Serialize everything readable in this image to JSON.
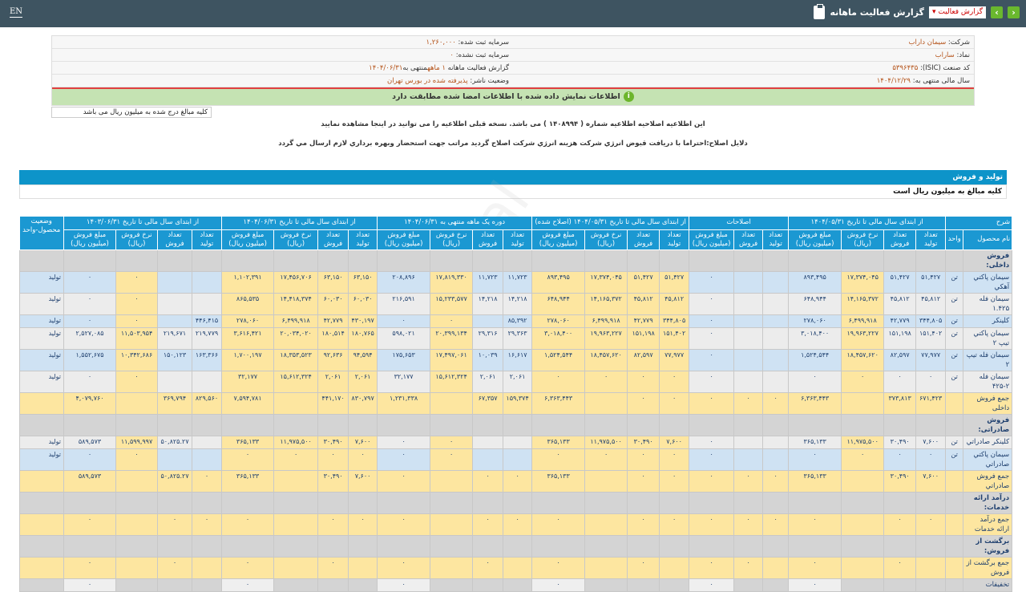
{
  "topbar": {
    "lang": "EN",
    "title": "گزارش فعالیت ماهانه",
    "select_value": "گزارش فعالیت",
    "prev_icon": "chevron-left",
    "next_icon": "chevron-right"
  },
  "info": {
    "company_label": "شرکت:",
    "company": "سیمان داراب",
    "capital_label": "سرمایه ثبت شده:",
    "capital": "۱,۲۶۰,۰۰۰",
    "symbol_label": "نماد:",
    "symbol": "ساراب",
    "unreg_capital_label": "سرمایه ثبت نشده:",
    "unreg_capital": "۰",
    "isic_label": "کد صنعت (ISIC):",
    "isic": "۵۳۹۶۴۳۵",
    "report_label": "گزارش فعالیت ماهانه",
    "report_period": "۱ ماهه",
    "report_end_label": "منتهی به",
    "report_end": "۱۴۰۴/۰۶/۳۱",
    "fiscal_label": "سال مالی منتهی به:",
    "fiscal": "۱۴۰۴/۱۲/۲۹",
    "status_label": "وضعیت ناشر:",
    "status": "پذیرفته شده در بورس تهران",
    "verified": "اطلاعات نمایش داده شده با اطلاعات امضا شده مطابقت دارد"
  },
  "unit_note": "کلیه مبالغ درج شده به میلیون ریال می باشد",
  "notes": {
    "correction_prefix": "این اطلاعیه اصلاحیه اطلاعیه شماره ( ۱۴۰۸۹۹۴ ) می باشد. نسخه قبلی اطلاعیه را می توانید در",
    "correction_link": "اینجا",
    "correction_suffix": "مشاهده نمایید",
    "reason": "دلایل اصلاح:احتراما با دریافت قبوض انرژي شرکت هزینه انرژي شرکت اصلاح گردید مراتب جهت استحضار وبهره برداري لازم ارسال مي گردد"
  },
  "section": {
    "title": "تولید و فروش",
    "note": "کلیه مبالغ به میلیون ریال است"
  },
  "colors": {
    "header": "#1b98d2",
    "topbar": "#3e5461",
    "highlight": "#fde6a0",
    "row_blue": "#cfe2f3",
    "row_gray": "#ececec"
  },
  "table": {
    "groups": [
      "شرح",
      "از ابتدای سال مالی تا تاریخ ۱۴۰۴/۰۵/۳۱",
      "اصلاحات",
      "از ابتدای سال مالی تا تاریخ ۱۴۰۴/۰۵/۳۱ (اصلاح شده)",
      "دوره یک ماهه منتهی به ۱۴۰۴/۰۶/۳۱",
      "از ابتدای سال مالی تا تاریخ ۱۴۰۴/۰۶/۳۱",
      "از ابتدای سال مالی تا تاریخ ۱۴۰۳/۰۶/۳۱",
      "وضعیت محصول-واحد"
    ],
    "sub": {
      "name": "نام محصول",
      "unit": "واحد",
      "prod": "تعداد تولید",
      "sales": "تعداد فروش",
      "rate": "نرخ فروش (ریال)",
      "amount": "مبلغ فروش (میلیون ریال)"
    },
    "rows": [
      {
        "type": "section",
        "name": "فروش داخلی:"
      },
      {
        "type": "blue",
        "name": "سیمان پاکتي آهکي",
        "unit": "تن",
        "status": "تولید",
        "cells": [
          "۵۱,۴۲۷",
          "۵۱,۴۲۷",
          "۱۷,۳۷۴,۰۴۵",
          "۸۹۳,۴۹۵",
          "",
          "",
          "۰",
          "۵۱,۴۲۷",
          "۵۱,۴۲۷",
          "۱۷,۳۷۴,۰۴۵",
          "۸۹۳,۴۹۵",
          "۱۱,۷۲۳",
          "۱۱,۷۲۳",
          "۱۷,۸۱۹,۳۳۰",
          "۲۰۸,۸۹۶",
          "۶۳,۱۵۰",
          "۶۳,۱۵۰",
          "۱۷,۴۵۶,۷۰۶",
          "۱,۱۰۲,۳۹۱",
          "",
          "",
          "۰",
          "۰"
        ]
      },
      {
        "type": "gray",
        "name": "سیمان فله ۱.۴۲۵",
        "unit": "تن",
        "status": "تولید",
        "cells": [
          "۴۵,۸۱۲",
          "۴۵,۸۱۲",
          "۱۴,۱۶۵,۳۷۲",
          "۶۴۸,۹۴۴",
          "",
          "",
          "۰",
          "۴۵,۸۱۲",
          "۴۵,۸۱۲",
          "۱۴,۱۶۵,۳۷۲",
          "۶۴۸,۹۴۴",
          "۱۴,۲۱۸",
          "۱۴,۲۱۸",
          "۱۵,۲۳۳,۵۷۷",
          "۲۱۶,۵۹۱",
          "۶۰,۰۳۰",
          "۶۰,۰۳۰",
          "۱۴,۴۱۸,۳۷۴",
          "۸۶۵,۵۳۵",
          "",
          "",
          "۰",
          "۰"
        ]
      },
      {
        "type": "blue",
        "name": "کلینکر",
        "unit": "تن",
        "status": "تولید",
        "cells": [
          "۳۴۴,۸۰۵",
          "۴۲,۷۷۹",
          "۶,۴۹۹,۹۱۸",
          "۲۷۸,۰۶۰",
          "",
          "",
          "۰",
          "۳۴۴,۸۰۵",
          "۴۲,۷۷۹",
          "۶,۴۹۹,۹۱۸",
          "۲۷۸,۰۶۰",
          "۸۵,۳۹۲",
          "",
          "۰",
          "۰",
          "۴۳۰,۱۹۷",
          "۴۲,۷۷۹",
          "۶,۴۹۹,۹۱۸",
          "۲۷۸,۰۶۰",
          "۴۴۶,۴۱۵",
          "",
          "۰",
          "۰"
        ]
      },
      {
        "type": "gray",
        "name": "سیمان پاکتي تیپ ۲",
        "unit": "تن",
        "status": "تولید",
        "cells": [
          "۱۵۱,۴۰۲",
          "۱۵۱,۱۹۸",
          "۱۹,۹۶۳,۲۲۷",
          "۳,۰۱۸,۴۰۰",
          "",
          "",
          "۰",
          "۱۵۱,۴۰۲",
          "۱۵۱,۱۹۸",
          "۱۹,۹۶۳,۲۲۷",
          "۳,۰۱۸,۴۰۰",
          "۲۹,۳۶۳",
          "۲۹,۳۱۶",
          "۲۰,۳۹۹,۱۳۴",
          "۵۹۸,۰۲۱",
          "۱۸۰,۷۶۵",
          "۱۸۰,۵۱۴",
          "۲۰,۰۳۴,۰۲۰",
          "۳,۶۱۶,۴۲۱",
          "۲۱۹,۷۷۹",
          "۲۱۹,۶۷۱",
          "۱۱,۵۰۳,۹۵۴",
          "۲,۵۲۷,۰۸۵"
        ]
      },
      {
        "type": "blue",
        "name": "سیمان فله تیپ ۲",
        "unit": "تن",
        "status": "تولید",
        "cells": [
          "۷۷,۹۷۷",
          "۸۲,۵۹۷",
          "۱۸,۴۵۷,۶۲۰",
          "۱,۵۲۴,۵۴۴",
          "",
          "",
          "۰",
          "۷۷,۹۷۷",
          "۸۲,۵۹۷",
          "۱۸,۴۵۷,۶۲۰",
          "۱,۵۲۴,۵۴۴",
          "۱۶,۶۱۷",
          "۱۰,۰۳۹",
          "۱۷,۴۹۷,۰۶۱",
          "۱۷۵,۶۵۳",
          "۹۴,۵۹۴",
          "۹۲,۶۳۶",
          "۱۸,۳۵۳,۵۲۳",
          "۱,۷۰۰,۱۹۷",
          "۱۶۳,۳۶۶",
          "۱۵۰,۱۲۳",
          "۱۰,۳۴۲,۶۸۶",
          "۱,۵۵۲,۶۷۵"
        ]
      },
      {
        "type": "gray",
        "name": "سیمان فله ۲-۴۲۵",
        "unit": "تن",
        "status": "تولید",
        "cells": [
          "۰",
          "۰",
          "۰",
          "۰",
          "",
          "",
          "۰",
          "۰",
          "۰",
          "۰",
          "۰",
          "۲,۰۶۱",
          "۲,۰۶۱",
          "۱۵,۶۱۲,۳۲۴",
          "۳۲,۱۷۷",
          "۲,۰۶۱",
          "۲,۰۶۱",
          "۱۵,۶۱۲,۳۲۴",
          "۳۲,۱۷۷",
          "",
          "",
          "۰",
          "۰"
        ]
      },
      {
        "type": "total",
        "name": "جمع فروش داخلی",
        "unit": "",
        "status": "",
        "cells": [
          "۶۷۱,۴۲۳",
          "۳۷۳,۸۱۳",
          "",
          "۶,۳۶۳,۴۴۳",
          "۰",
          "۰",
          "۰",
          "۰",
          "۰",
          "",
          "۶,۳۶۳,۴۴۳",
          "۱۵۹,۳۷۴",
          "۶۷,۳۵۷",
          "",
          "۱,۲۳۱,۳۳۸",
          "۸۳۰,۷۹۷",
          "۴۴۱,۱۷۰",
          "",
          "۷,۵۹۴,۷۸۱",
          "۸۲۹,۵۶۰",
          "۳۶۹,۷۹۴",
          "",
          "۴,۰۷۹,۷۶۰"
        ]
      },
      {
        "type": "section",
        "name": "فروش صادراتی:"
      },
      {
        "type": "gray",
        "name": "کلینکر صادراتي",
        "unit": "تن",
        "status": "تولید",
        "cells": [
          "۷,۶۰۰",
          "۳۰,۴۹۰",
          "۱۱,۹۷۵,۵۰۰",
          "۳۶۵,۱۳۳",
          "",
          "",
          "۰",
          "۷,۶۰۰",
          "۳۰,۴۹۰",
          "۱۱,۹۷۵,۵۰۰",
          "۳۶۵,۱۳۳",
          "",
          "",
          "۰",
          "۰",
          "۷,۶۰۰",
          "۳۰,۴۹۰",
          "۱۱,۹۷۵,۵۰۰",
          "۳۶۵,۱۳۳",
          "",
          "۵۰,۸۲۵.۲۷",
          "۱۱,۵۹۹,۹۹۷",
          "۵۸۹,۵۷۳"
        ]
      },
      {
        "type": "blue",
        "name": "سیمان پاکتي صادراتي",
        "unit": "تن",
        "status": "تولید",
        "cells": [
          "۰",
          "۰",
          "۰",
          "۰",
          "",
          "",
          "۰",
          "۰",
          "۰",
          "۰",
          "۰",
          "",
          "",
          "۰",
          "۰",
          "۰",
          "۰",
          "۰",
          "۰",
          "",
          "",
          "۰",
          "۰"
        ]
      },
      {
        "type": "total",
        "name": "جمع فروش صادراتي",
        "unit": "",
        "status": "",
        "cells": [
          "۷,۶۰۰",
          "۳۰,۴۹۰",
          "",
          "۳۶۵,۱۳۳",
          "۰",
          "۰",
          "۰",
          "۰",
          "۰",
          "",
          "۳۶۵,۱۳۳",
          "۰",
          "۰",
          "",
          "۰",
          "۷,۶۰۰",
          "۳۰,۴۹۰",
          "",
          "۳۶۵,۱۳۳",
          "۰",
          "۵۰,۸۲۵.۲۷",
          "",
          "۵۸۹,۵۷۳"
        ]
      },
      {
        "type": "section",
        "name": "درآمد ارائه خدمات:"
      },
      {
        "type": "total",
        "name": "جمع درآمد ارائه خدمات",
        "unit": "",
        "status": "",
        "cells": [
          "۰",
          "۰",
          "",
          "۰",
          "۰",
          "۰",
          "۰",
          "۰",
          "۰",
          "",
          "۰",
          "۰",
          "۰",
          "",
          "۰",
          "۰",
          "۰",
          "",
          "۰",
          "۰",
          "۰",
          "",
          "۰"
        ]
      },
      {
        "type": "section",
        "name": "برگشت از فروش:"
      },
      {
        "type": "total",
        "name": "جمع برگشت از فروش",
        "unit": "",
        "status": "",
        "cells": [
          "",
          "۰",
          "",
          "۰",
          "",
          "۰",
          "۰",
          "",
          "۰",
          "",
          "۰",
          "",
          "۰",
          "",
          "۰",
          "",
          "۰",
          "",
          "۰",
          "",
          "۰",
          "",
          "۰"
        ]
      },
      {
        "type": "discount",
        "name": "تخفیفات",
        "unit": "",
        "status": "",
        "cells": [
          "",
          "",
          "",
          "۰",
          "",
          "",
          "۰",
          "",
          "",
          "",
          "۰",
          "",
          "",
          "",
          "۰",
          "",
          "",
          "",
          "۰",
          "",
          "",
          "",
          "۰"
        ]
      }
    ]
  }
}
